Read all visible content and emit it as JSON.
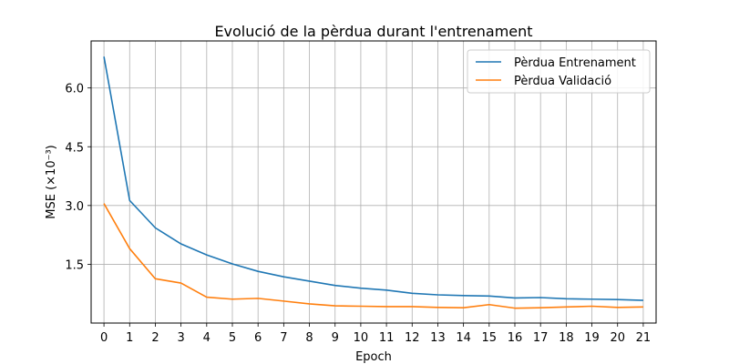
{
  "chart_data": {
    "type": "line",
    "title": "Evolució de la pèrdua durant l'entrenament",
    "xlabel": "Epoch",
    "ylabel": "MSE (×10⁻³)",
    "x": [
      0,
      1,
      2,
      3,
      4,
      5,
      6,
      7,
      8,
      9,
      10,
      11,
      12,
      13,
      14,
      15,
      16,
      17,
      18,
      19,
      20,
      21
    ],
    "xlim": [
      -0.5,
      21.5
    ],
    "ylim": [
      0.0,
      7.2
    ],
    "yticks": [
      1.5,
      3.0,
      4.5,
      6.0
    ],
    "ytick_labels": [
      "1.5",
      "3.0",
      "4.5",
      "6.0"
    ],
    "grid": true,
    "legend_position": "top-right",
    "series": [
      {
        "name": "Pèrdua Entrenament",
        "color": "#1f77b4",
        "values": [
          6.8,
          3.13,
          2.43,
          2.02,
          1.74,
          1.51,
          1.32,
          1.18,
          1.07,
          0.96,
          0.89,
          0.84,
          0.76,
          0.72,
          0.7,
          0.69,
          0.64,
          0.65,
          0.62,
          0.61,
          0.6,
          0.58
        ]
      },
      {
        "name": "Pèrdua Validació",
        "color": "#ff7f0e",
        "values": [
          3.05,
          1.9,
          1.13,
          1.02,
          0.66,
          0.61,
          0.63,
          0.56,
          0.49,
          0.44,
          0.43,
          0.42,
          0.42,
          0.4,
          0.39,
          0.47,
          0.38,
          0.39,
          0.41,
          0.43,
          0.4,
          0.41
        ]
      }
    ]
  }
}
